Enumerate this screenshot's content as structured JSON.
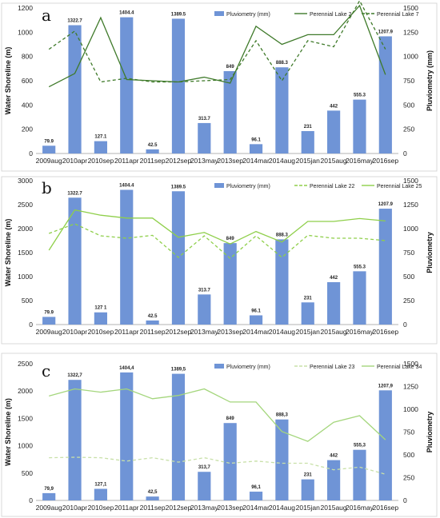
{
  "chart_data": [
    {
      "type": "bar",
      "panel_letter": "a",
      "categories": [
        "2009aug",
        "2010apr",
        "2010sep",
        "2011apr",
        "2011sep",
        "2012sep",
        "2013may",
        "2013sep",
        "2014mar",
        "2014aug",
        "2015jan",
        "2015aug",
        "2016may",
        "2016sep"
      ],
      "ylabel": "Water Shoreline (m)",
      "ylabel_right": "Pluviometry (mm)",
      "ylim": [
        0,
        1200
      ],
      "yticks": [
        0,
        200,
        400,
        600,
        800,
        1000,
        1200
      ],
      "ylim_right": [
        0,
        1500
      ],
      "yticks_right": [
        0,
        250,
        500,
        750,
        1000,
        1250,
        1500
      ],
      "bar_series": {
        "name": "Pluviometry (mm)",
        "color": "#6f94d6",
        "axis": "right",
        "values": [
          79.9,
          1322.7,
          127.1,
          1404.4,
          42.5,
          1389.5,
          313.7,
          849,
          96.1,
          888.3,
          231,
          442,
          555.3,
          1207.9
        ],
        "labels": [
          "79.9",
          "1322.7",
          "127.1",
          "1404.4",
          "42.5",
          "1389.5",
          "313.7",
          "849",
          "96.1",
          "888.3",
          "231",
          "442",
          "555.3",
          "1207.9"
        ]
      },
      "line_series": [
        {
          "name": "Perennial Lake 2",
          "color": "#3f7a2a",
          "dash": "solid",
          "axis": "left",
          "values": [
            550,
            660,
            1120,
            610,
            600,
            590,
            630,
            580,
            1050,
            900,
            980,
            980,
            1220,
            650
          ]
        },
        {
          "name": "Perennial Lake 7",
          "color": "#3f7a2a",
          "dash": "dashed",
          "axis": "left",
          "values": [
            860,
            1010,
            590,
            620,
            590,
            590,
            600,
            610,
            930,
            600,
            930,
            880,
            1260,
            860
          ]
        }
      ]
    },
    {
      "type": "bar",
      "panel_letter": "b",
      "categories": [
        "2009aug",
        "2010apr",
        "2010sep",
        "2011apr",
        "2011sep",
        "2012sep",
        "2013may",
        "2013sep",
        "2014mar",
        "2014aug",
        "2015jan",
        "2015aug",
        "2016may",
        "2016sep"
      ],
      "ylabel": "Water Shoreline (m)",
      "ylabel_right": "Pluviometry",
      "ylim": [
        0,
        3000
      ],
      "yticks": [
        0,
        500,
        1000,
        1500,
        2000,
        2500,
        3000
      ],
      "ylim_right": [
        0,
        1500
      ],
      "yticks_right": [
        0,
        250,
        500,
        750,
        1000,
        1250,
        1500
      ],
      "bar_series": {
        "name": "Pluviometry (mm)",
        "color": "#6f94d6",
        "axis": "right",
        "values": [
          79.9,
          1322.7,
          127.1,
          1404.4,
          42.5,
          1389.5,
          313.7,
          849,
          96.1,
          888.3,
          231,
          442,
          555.3,
          1207.9
        ],
        "labels": [
          "79.9",
          "1322.7",
          "127 1",
          "1404.4",
          "42.5",
          "1389.5",
          "313.7",
          "849",
          "96.1",
          "888.3",
          "231",
          "442",
          "555.3",
          "1207.9"
        ]
      },
      "line_series": [
        {
          "name": "Perennial Lake 22",
          "color": "#8fcf4a",
          "dash": "dashed",
          "axis": "left",
          "values": [
            1900,
            2100,
            1850,
            1800,
            1860,
            1400,
            1850,
            1380,
            1850,
            1400,
            1860,
            1800,
            1800,
            1750
          ]
        },
        {
          "name": "Perennial Lake 25",
          "color": "#8fcf4a",
          "dash": "solid",
          "axis": "left",
          "values": [
            1550,
            2390,
            2280,
            2220,
            2220,
            1820,
            1920,
            1680,
            1940,
            1720,
            2150,
            2150,
            2210,
            2160
          ]
        }
      ]
    },
    {
      "type": "bar",
      "panel_letter": "c",
      "categories": [
        "2009aug",
        "2010apr",
        "2010sep",
        "2011apr",
        "2011sep",
        "2012sep",
        "2013may",
        "2013sep",
        "2014mar",
        "2014aug",
        "2015jan",
        "2015aug",
        "2016may",
        "2016sep"
      ],
      "ylabel": "Water Shoreline (m)",
      "ylabel_right": "Pluviometry",
      "ylim": [
        0,
        2500
      ],
      "yticks": [
        0,
        500,
        1000,
        1500,
        2000,
        2500
      ],
      "ylim_right": [
        0,
        1500
      ],
      "yticks_right": [
        0,
        250,
        500,
        750,
        1000,
        1250,
        1500
      ],
      "bar_series": {
        "name": "Pluviometry (mm)",
        "color": "#6f94d6",
        "axis": "right",
        "values": [
          79.9,
          1322.7,
          127.1,
          1404.4,
          42.5,
          1389.5,
          313.7,
          849,
          96.1,
          888.3,
          231,
          442,
          555.3,
          1207.9
        ],
        "labels": [
          "79,9",
          "1322,7",
          "127,1",
          "1404,4",
          "42,5",
          "1389,5",
          "313,7",
          "849",
          "96,1",
          "888,3",
          "231",
          "442",
          "555,3",
          "1207,9"
        ]
      },
      "line_series": [
        {
          "name": "Perennial Lake 23",
          "color": "#c8e0a8",
          "dash": "dashed",
          "axis": "left",
          "values": [
            780,
            790,
            780,
            720,
            780,
            700,
            780,
            680,
            720,
            680,
            680,
            560,
            610,
            480
          ]
        },
        {
          "name": "Perennial Lake 34",
          "color": "#a4d67c",
          "dash": "solid",
          "axis": "left",
          "values": [
            1910,
            2040,
            1980,
            2040,
            1860,
            1920,
            2040,
            1800,
            1800,
            1260,
            1080,
            1430,
            1550,
            1110
          ]
        }
      ]
    }
  ]
}
